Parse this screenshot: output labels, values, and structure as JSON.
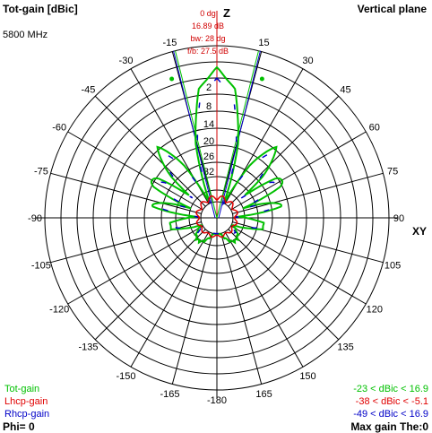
{
  "header": {
    "title": "Tot-gain [dBic]",
    "frequency": "5800 MHz",
    "plane": "Vertical plane"
  },
  "info": {
    "angle": "0 dg",
    "max_gain": "16.89 dB",
    "beamwidth": "bw: 28 dg",
    "front_back": "f/b: 27.5 dB",
    "z_label": "Z",
    "xy_label": "XY"
  },
  "footer": {
    "phi": "Phi= 0",
    "max_gain_theta": "Max gain The:0"
  },
  "colors": {
    "tot": "#00c000",
    "lhcp": "#e00000",
    "rhcp": "#0000c8",
    "grid": "#000000",
    "info": "#d00000"
  },
  "chart_data": {
    "type": "polar",
    "angle_unit": "degrees",
    "zero_direction": "top (Z)",
    "angle_ticks": [
      -15,
      -30,
      -45,
      -60,
      -75,
      -90,
      -105,
      -120,
      -135,
      -150,
      -165,
      -180,
      165,
      150,
      135,
      120,
      105,
      90,
      75,
      60,
      45,
      30,
      15,
      0
    ],
    "angle_tick_labels": [
      "-15",
      "-30",
      "-45",
      "-60",
      "-75",
      "-90",
      "-105",
      "-120",
      "-135",
      "-150",
      "-165",
      "-180",
      "165",
      "150",
      "135",
      "120",
      "105",
      "90",
      "75",
      "60",
      "45",
      "30",
      "15",
      "0 dg"
    ],
    "radial_tick_labels": [
      "2",
      "8",
      "14",
      "20",
      "26",
      "32"
    ],
    "series": [
      {
        "name": "Tot-gain",
        "range_label": "-23 < dBic < 16.9",
        "min": -23,
        "max": 16.9,
        "color": "#00c000"
      },
      {
        "name": "Lhcp-gain",
        "range_label": "-38 < dBic < -5.1",
        "min": -38,
        "max": -5.1,
        "color": "#e00000"
      },
      {
        "name": "Rhcp-gain",
        "range_label": "-49 < dBic < 16.9",
        "min": -49,
        "max": 16.9,
        "color": "#0000c8"
      }
    ],
    "max_gain_dBic": 16.89,
    "beamwidth_deg": 28,
    "front_to_back_dB": 27.5
  }
}
